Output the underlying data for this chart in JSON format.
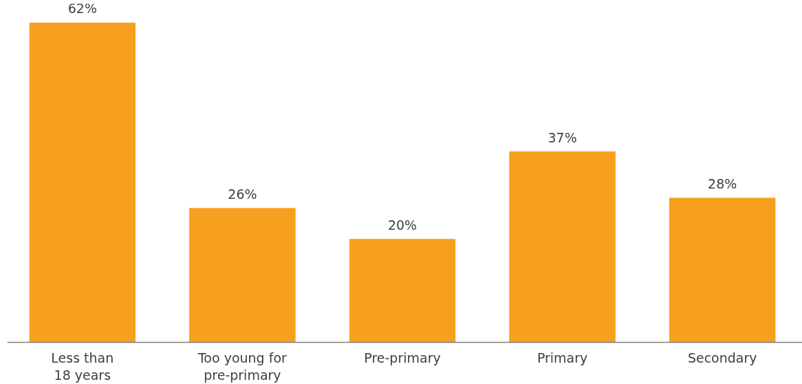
{
  "chart_data": {
    "type": "bar",
    "categories": [
      "Less than\n18 years",
      "Too young for\npre-primary",
      "Pre-primary",
      "Primary",
      "Secondary"
    ],
    "values": [
      62,
      26,
      20,
      37,
      28
    ],
    "value_labels": [
      "62%",
      "26%",
      "20%",
      "37%",
      "28%"
    ],
    "color": "#f7a01f",
    "tick_labels": "x",
    "grid": false
  }
}
